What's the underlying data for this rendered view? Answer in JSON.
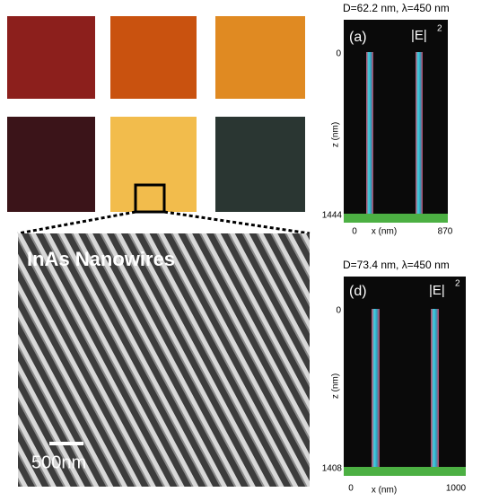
{
  "left_panel": {
    "sem_label": "InAs Nanowires",
    "scale_bar": "500nm"
  },
  "panels": [
    {
      "header": "D=62.2 nm, λ=450 nm",
      "tag": "(a)",
      "quantity": "|E|",
      "quantity_power": 2,
      "z_axis": {
        "label": "z (nm)",
        "top": 0,
        "bottom": 1444
      },
      "x_axis": {
        "label": "x (nm)",
        "left": 0,
        "right": 870
      }
    },
    {
      "header": "D=73.4 nm, λ=450 nm",
      "tag": "(d)",
      "quantity": "|E|",
      "quantity_power": 2,
      "z_axis": {
        "label": "z (nm)",
        "top": 0,
        "bottom": 1408
      },
      "x_axis": {
        "label": "x (nm)",
        "left": 0,
        "right": 1000
      }
    }
  ]
}
